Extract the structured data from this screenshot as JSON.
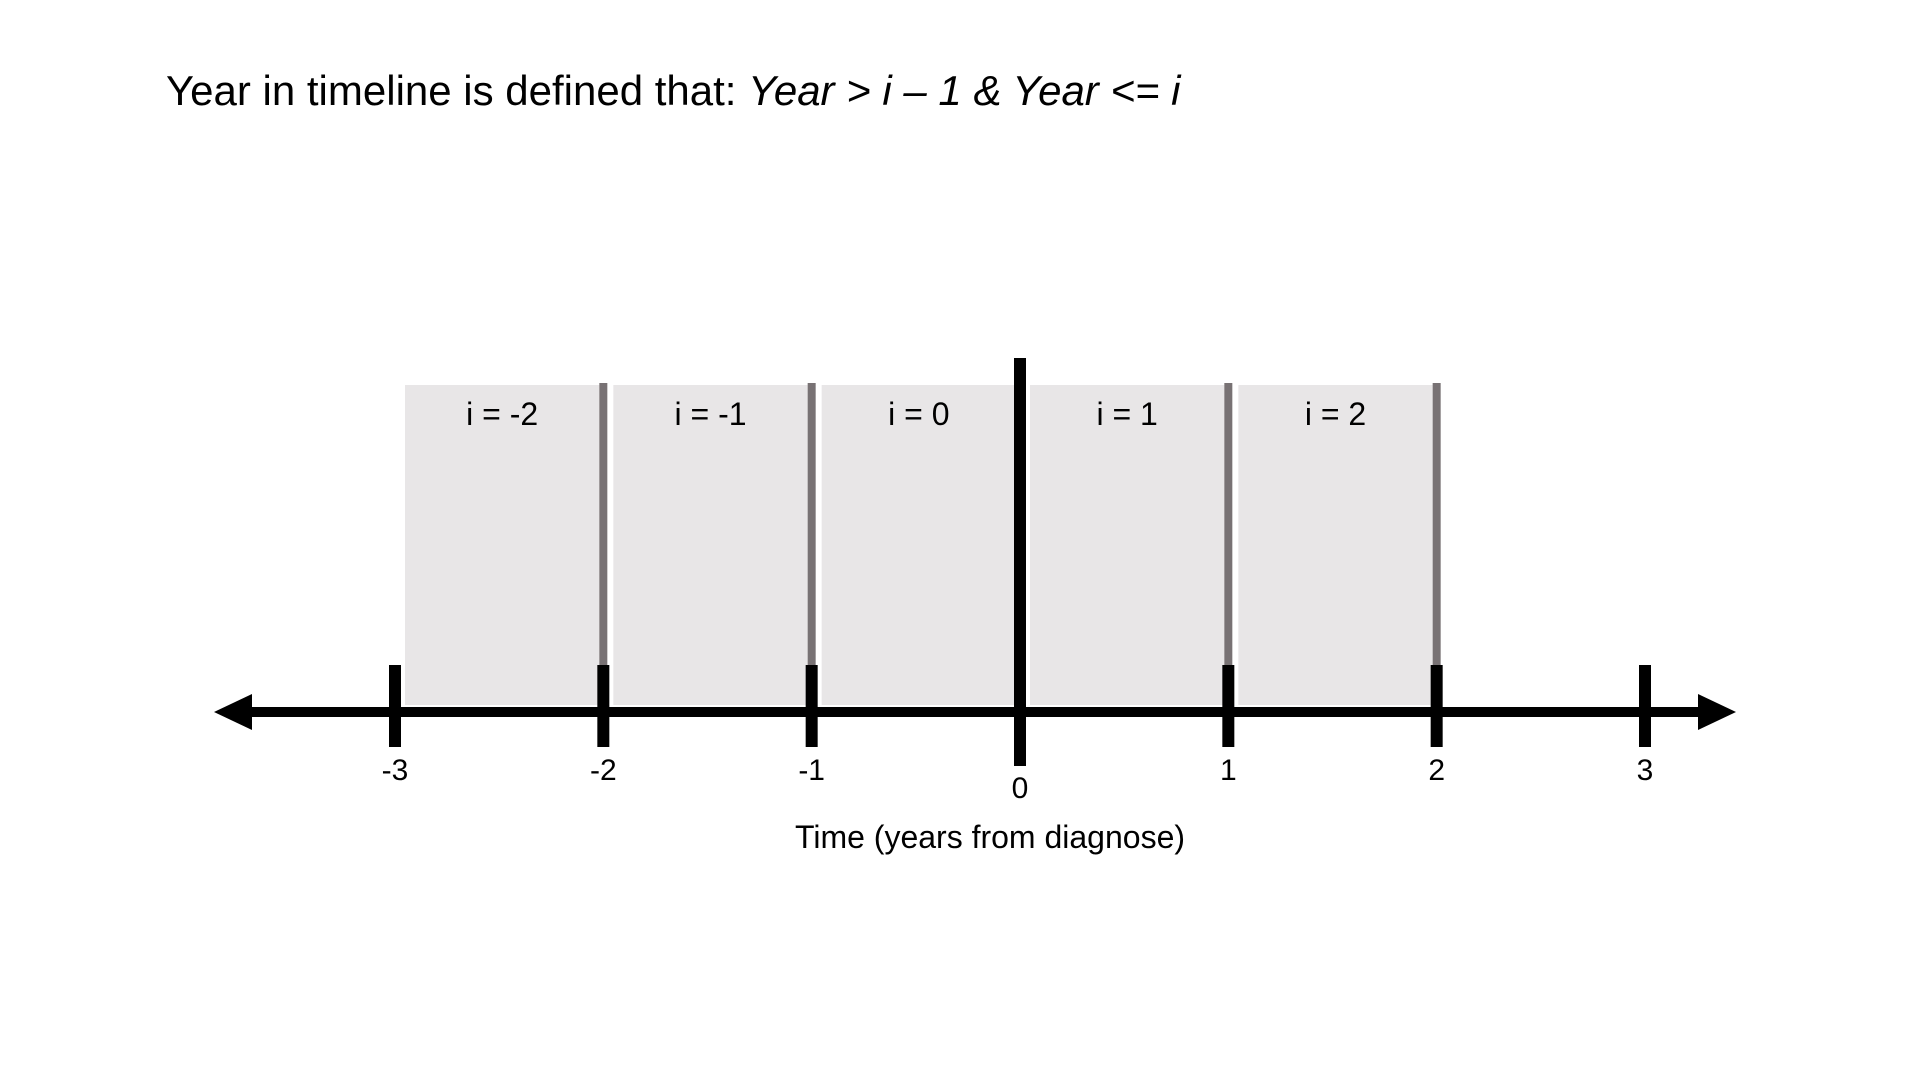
{
  "title": {
    "prefix": "Year in timeline is defined that: ",
    "formula": "Year > i – 1 & Year <= i"
  },
  "axis": {
    "label": "Time (years from diagnose)",
    "range": [
      -3,
      3
    ],
    "ticks": [
      "-3",
      "-2",
      "-1",
      "0",
      "1",
      "2",
      "3"
    ],
    "tick_values": [
      -3,
      -2,
      -1,
      0,
      1,
      2,
      3
    ]
  },
  "segments": [
    {
      "label": "i = -2",
      "from": -3,
      "to": -2
    },
    {
      "label": "i = -1",
      "from": -2,
      "to": -1
    },
    {
      "label": "i = 0",
      "from": -1,
      "to": 0
    },
    {
      "label": "i = 1",
      "from": 0,
      "to": 1
    },
    {
      "label": "i = 2",
      "from": 1,
      "to": 2
    }
  ],
  "colors": {
    "segment_fill": "#e8e6e7",
    "divider": "#787274",
    "axis": "#000000"
  }
}
